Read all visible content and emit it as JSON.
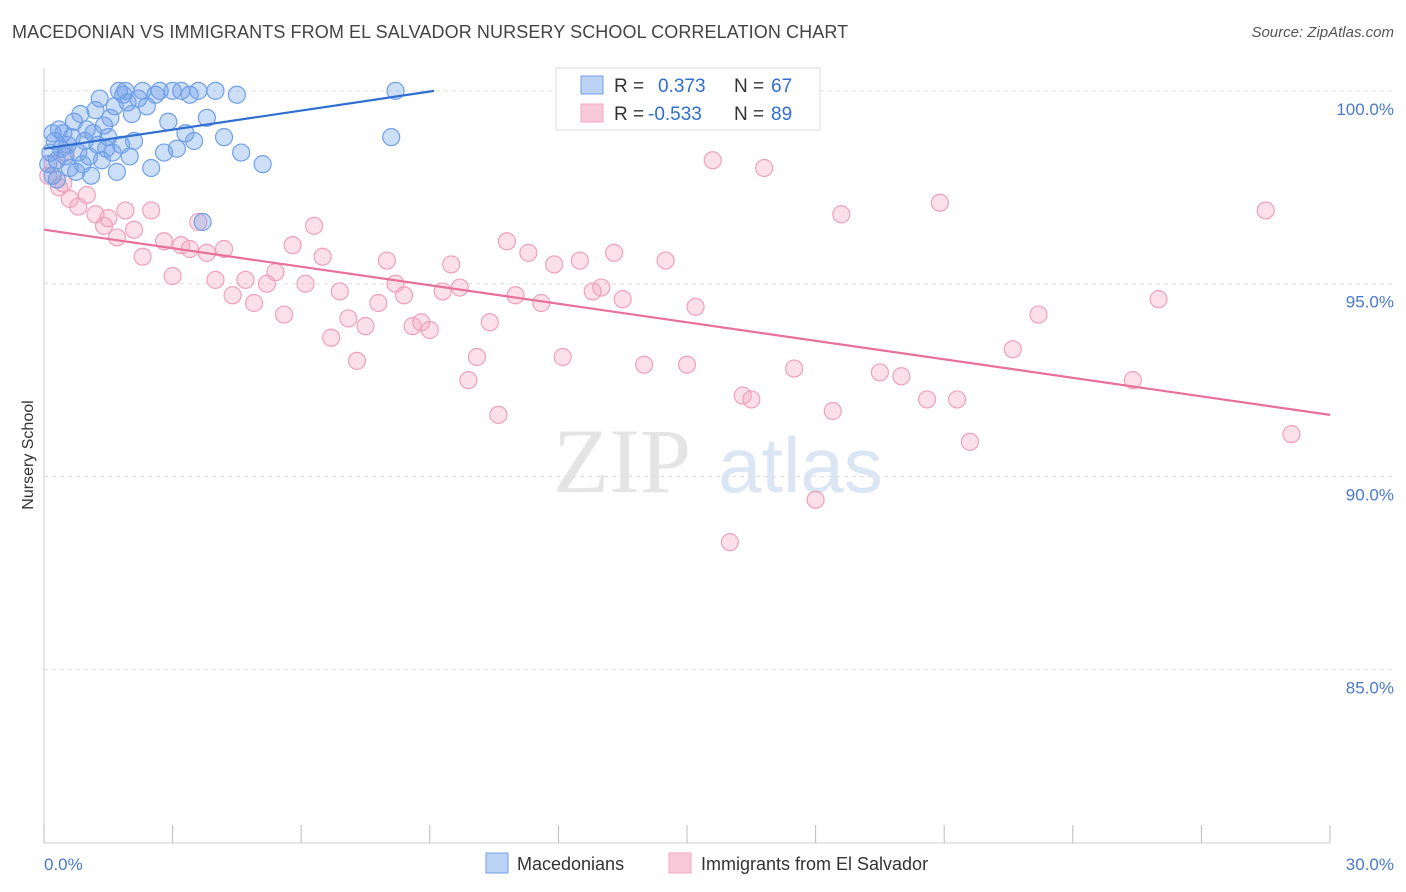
{
  "title": "MACEDONIAN VS IMMIGRANTS FROM EL SALVADOR NURSERY SCHOOL CORRELATION CHART",
  "source": "Source: ZipAtlas.com",
  "watermark": {
    "zip": "ZIP",
    "atlas": "atlas"
  },
  "colors": {
    "blue": "#6fa0e8",
    "blue_line": "#2f6fd1",
    "pink": "#f4a6c0",
    "pink_line": "#e8709a",
    "tick_text": "#4a7ac9"
  },
  "legend": {
    "r_label": "R =",
    "n_label": "N =",
    "rows": [
      {
        "r": "0.373",
        "n": "67",
        "color": "blue"
      },
      {
        "r": "-0.533",
        "n": "89",
        "color": "pink"
      }
    ]
  },
  "bottom_legend": [
    "Macedonians",
    "Immigrants from El Salvador"
  ],
  "chart_data": {
    "type": "scatter",
    "title": "MACEDONIAN VS IMMIGRANTS FROM EL SALVADOR NURSERY SCHOOL CORRELATION CHART",
    "xlabel": "",
    "ylabel": "Nursery School",
    "xlim": [
      0,
      30
    ],
    "ylim": [
      80.5,
      100.8
    ],
    "x_tick_labels": [
      "0.0%",
      "30.0%"
    ],
    "y_ticks": [
      100,
      95,
      90,
      85
    ],
    "y_tick_labels": [
      "100.0%",
      "95.0%",
      "90.0%",
      "85.0%"
    ],
    "grid": true,
    "legend_position": "top-center",
    "series": [
      {
        "name": "Macedonians",
        "color": "blue",
        "trend": {
          "x": [
            0,
            9.1
          ],
          "y": [
            98.5,
            100.0
          ]
        },
        "points": [
          [
            0.1,
            98.1
          ],
          [
            0.15,
            98.4
          ],
          [
            0.2,
            97.8
          ],
          [
            0.25,
            98.7
          ],
          [
            0.3,
            98.2
          ],
          [
            0.35,
            99.0
          ],
          [
            0.4,
            98.5
          ],
          [
            0.45,
            98.9
          ],
          [
            0.5,
            98.3
          ],
          [
            0.55,
            98.6
          ],
          [
            0.6,
            98.0
          ],
          [
            0.65,
            98.8
          ],
          [
            0.7,
            99.2
          ],
          [
            0.75,
            97.9
          ],
          [
            0.8,
            98.4
          ],
          [
            0.85,
            99.4
          ],
          [
            0.9,
            98.1
          ],
          [
            0.95,
            98.7
          ],
          [
            1.0,
            99.0
          ],
          [
            1.05,
            98.3
          ],
          [
            1.1,
            97.8
          ],
          [
            1.15,
            98.9
          ],
          [
            1.2,
            99.5
          ],
          [
            1.25,
            98.6
          ],
          [
            1.3,
            99.8
          ],
          [
            1.35,
            98.2
          ],
          [
            1.4,
            99.1
          ],
          [
            1.45,
            98.5
          ],
          [
            1.5,
            98.8
          ],
          [
            1.55,
            99.3
          ],
          [
            1.6,
            98.4
          ],
          [
            1.65,
            99.6
          ],
          [
            1.7,
            97.9
          ],
          [
            1.75,
            100.0
          ],
          [
            1.8,
            98.6
          ],
          [
            1.85,
            99.9
          ],
          [
            1.9,
            100.0
          ],
          [
            1.95,
            99.7
          ],
          [
            2.0,
            98.3
          ],
          [
            2.05,
            99.4
          ],
          [
            2.1,
            98.7
          ],
          [
            2.2,
            99.8
          ],
          [
            2.3,
            100.0
          ],
          [
            2.4,
            99.6
          ],
          [
            2.5,
            98.0
          ],
          [
            2.6,
            99.9
          ],
          [
            2.7,
            100.0
          ],
          [
            2.8,
            98.4
          ],
          [
            2.9,
            99.2
          ],
          [
            3.0,
            100.0
          ],
          [
            3.1,
            98.5
          ],
          [
            3.2,
            100.0
          ],
          [
            3.3,
            98.9
          ],
          [
            3.4,
            99.9
          ],
          [
            3.5,
            98.7
          ],
          [
            3.6,
            100.0
          ],
          [
            3.8,
            99.3
          ],
          [
            4.0,
            100.0
          ],
          [
            4.2,
            98.8
          ],
          [
            4.5,
            99.9
          ],
          [
            3.7,
            96.6
          ],
          [
            4.6,
            98.4
          ],
          [
            5.1,
            98.1
          ],
          [
            8.1,
            98.8
          ],
          [
            8.2,
            100.0
          ],
          [
            0.3,
            97.7
          ],
          [
            0.2,
            98.9
          ]
        ]
      },
      {
        "name": "Immigrants from El Salvador",
        "color": "pink",
        "trend": {
          "x": [
            0,
            30
          ],
          "y": [
            96.4,
            91.6
          ]
        },
        "points": [
          [
            0.1,
            97.8
          ],
          [
            0.2,
            98.1
          ],
          [
            0.35,
            97.5
          ],
          [
            0.5,
            98.4
          ],
          [
            0.6,
            97.2
          ],
          [
            0.8,
            97.0
          ],
          [
            1.0,
            97.3
          ],
          [
            1.2,
            96.8
          ],
          [
            1.4,
            96.5
          ],
          [
            1.5,
            96.7
          ],
          [
            1.7,
            96.2
          ],
          [
            1.9,
            96.9
          ],
          [
            2.1,
            96.4
          ],
          [
            2.3,
            95.7
          ],
          [
            2.5,
            96.9
          ],
          [
            2.8,
            96.1
          ],
          [
            3.0,
            95.2
          ],
          [
            3.2,
            96.0
          ],
          [
            3.4,
            95.9
          ],
          [
            3.6,
            96.6
          ],
          [
            3.8,
            95.8
          ],
          [
            4.0,
            95.1
          ],
          [
            4.2,
            95.9
          ],
          [
            4.4,
            94.7
          ],
          [
            4.7,
            95.1
          ],
          [
            4.9,
            94.5
          ],
          [
            5.2,
            95.0
          ],
          [
            5.4,
            95.3
          ],
          [
            5.6,
            94.2
          ],
          [
            5.8,
            96.0
          ],
          [
            6.1,
            95.0
          ],
          [
            6.3,
            96.5
          ],
          [
            6.5,
            95.7
          ],
          [
            6.7,
            93.6
          ],
          [
            6.9,
            94.8
          ],
          [
            7.1,
            94.1
          ],
          [
            7.3,
            93.0
          ],
          [
            7.5,
            93.9
          ],
          [
            7.8,
            94.5
          ],
          [
            8.0,
            95.6
          ],
          [
            8.2,
            95.0
          ],
          [
            8.4,
            94.7
          ],
          [
            8.6,
            93.9
          ],
          [
            8.8,
            94.0
          ],
          [
            9.0,
            93.8
          ],
          [
            9.3,
            94.8
          ],
          [
            9.5,
            95.5
          ],
          [
            9.7,
            94.9
          ],
          [
            9.9,
            92.5
          ],
          [
            10.1,
            93.1
          ],
          [
            10.4,
            94.0
          ],
          [
            10.6,
            91.6
          ],
          [
            10.8,
            96.1
          ],
          [
            11.0,
            94.7
          ],
          [
            11.3,
            95.8
          ],
          [
            11.6,
            94.5
          ],
          [
            11.9,
            95.5
          ],
          [
            12.1,
            93.1
          ],
          [
            12.5,
            95.6
          ],
          [
            12.8,
            94.8
          ],
          [
            13.0,
            94.9
          ],
          [
            13.3,
            95.8
          ],
          [
            13.5,
            94.6
          ],
          [
            14.0,
            92.9
          ],
          [
            14.5,
            95.6
          ],
          [
            15.0,
            92.9
          ],
          [
            15.2,
            94.4
          ],
          [
            15.6,
            98.2
          ],
          [
            16.0,
            88.3
          ],
          [
            16.3,
            92.1
          ],
          [
            16.5,
            92.0
          ],
          [
            16.8,
            98.0
          ],
          [
            17.5,
            92.8
          ],
          [
            18.0,
            89.4
          ],
          [
            18.4,
            91.7
          ],
          [
            18.6,
            96.8
          ],
          [
            19.5,
            92.7
          ],
          [
            20.0,
            92.6
          ],
          [
            20.6,
            92.0
          ],
          [
            20.9,
            97.1
          ],
          [
            21.3,
            92.0
          ],
          [
            21.6,
            90.9
          ],
          [
            22.6,
            93.3
          ],
          [
            23.2,
            94.2
          ],
          [
            25.4,
            92.5
          ],
          [
            26.0,
            94.6
          ],
          [
            28.5,
            96.9
          ],
          [
            29.1,
            91.1
          ],
          [
            0.45,
            97.6
          ]
        ]
      }
    ]
  }
}
